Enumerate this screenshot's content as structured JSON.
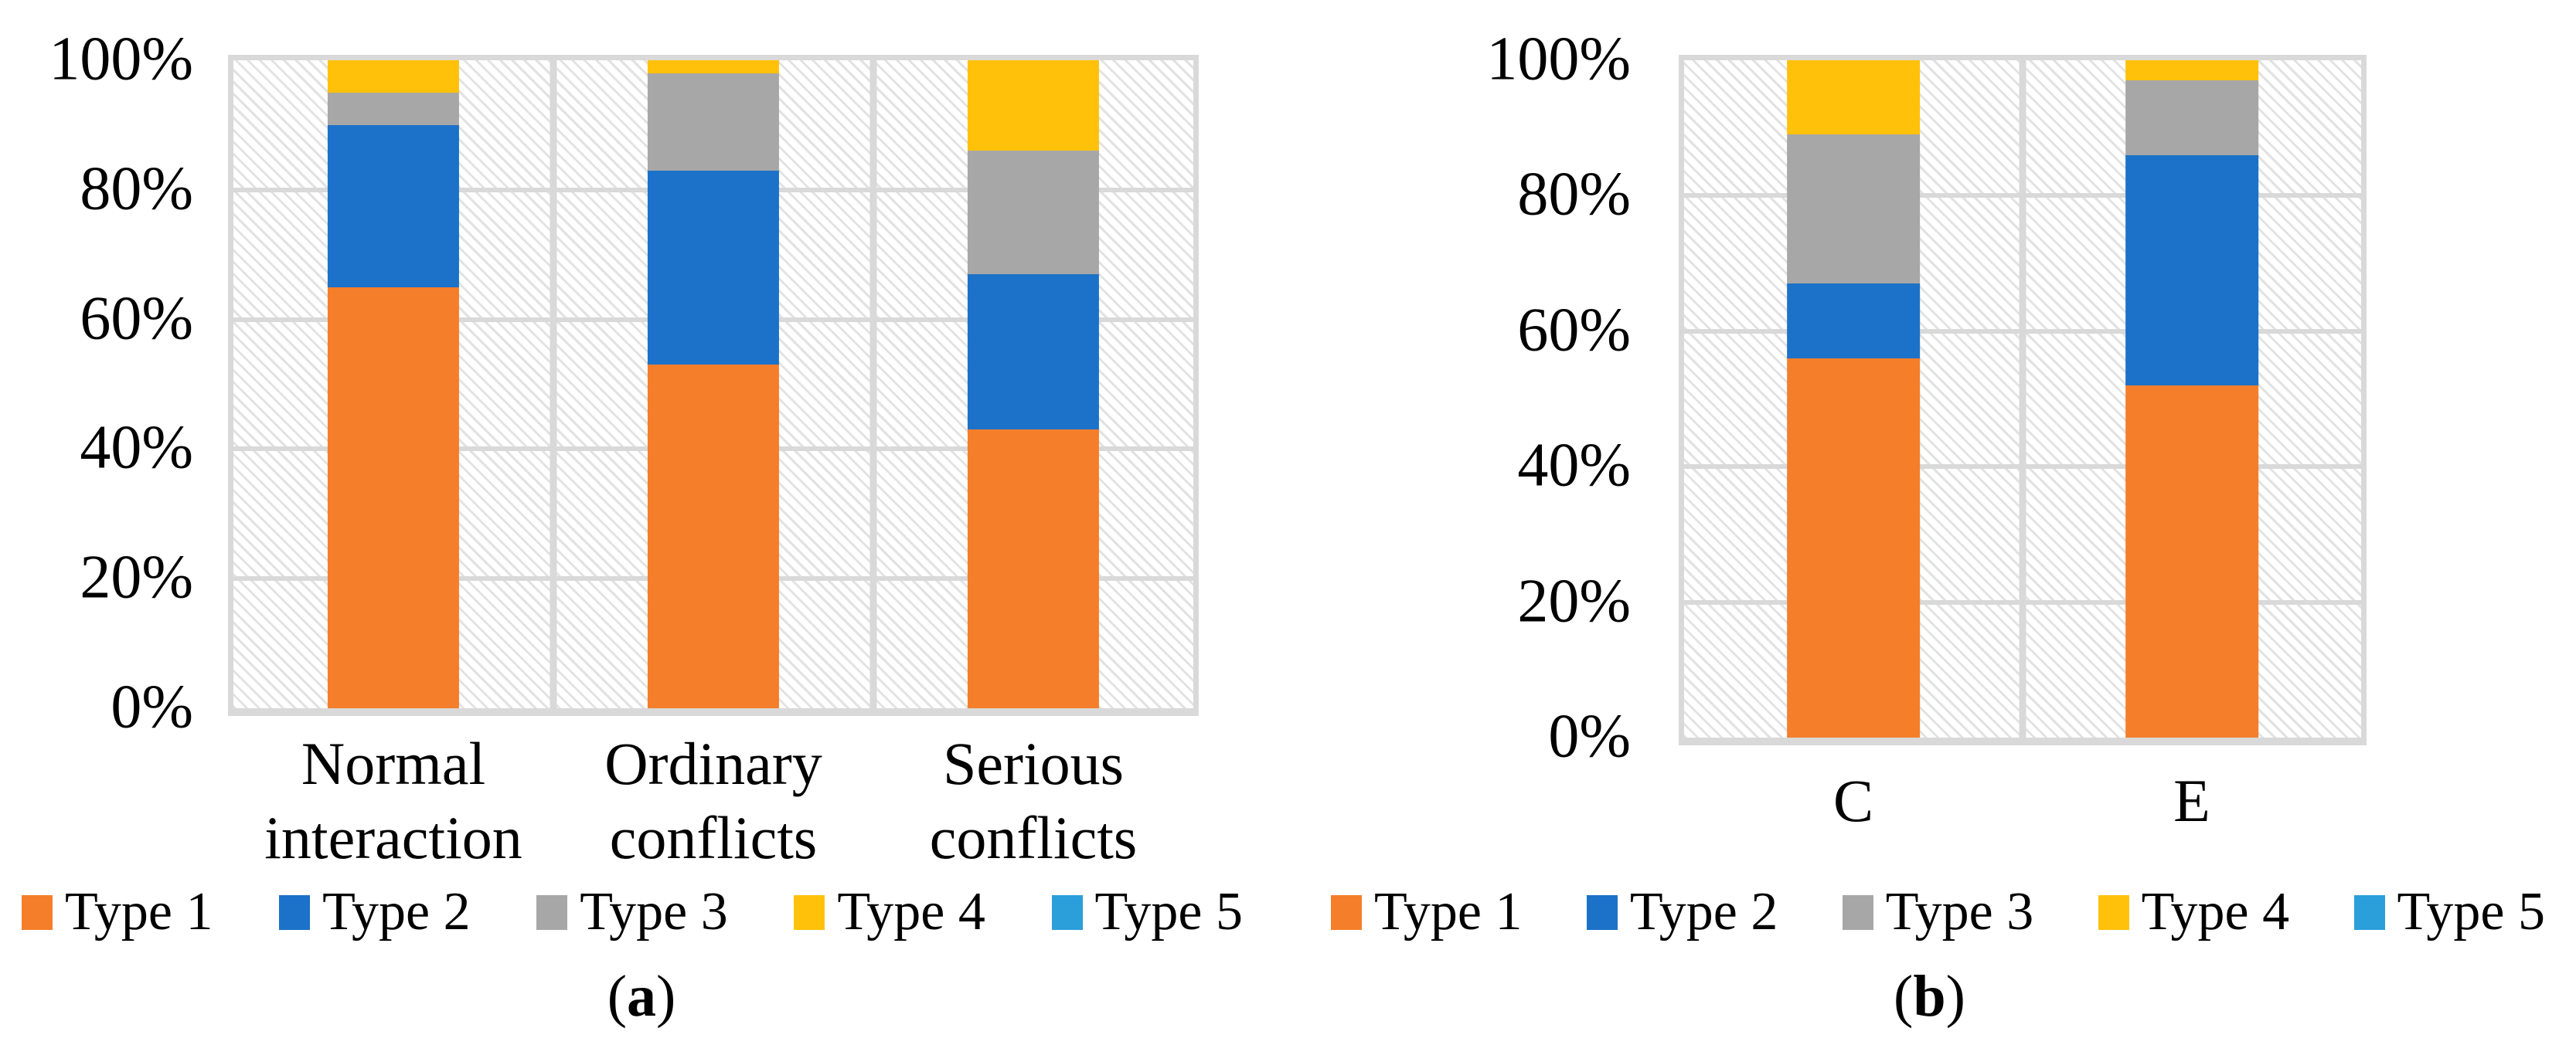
{
  "chart_data": [
    {
      "type": "bar",
      "stacked": true,
      "orientation": "vertical",
      "caption_open": "(",
      "caption_letter": "a",
      "caption_close": ")",
      "categories": [
        "Normal interaction",
        "Ordinary conflicts",
        "Serious conflicts"
      ],
      "series": [
        {
          "name": "Type 1",
          "color": "#F57E2B",
          "values": [
            65,
            53,
            43
          ]
        },
        {
          "name": "Type 2",
          "color": "#1B72C8",
          "values": [
            25,
            30,
            24
          ]
        },
        {
          "name": "Type 3",
          "color": "#A7A7A7",
          "values": [
            5,
            15,
            19
          ]
        },
        {
          "name": "Type 4",
          "color": "#FFC10A",
          "values": [
            5,
            2,
            14
          ]
        },
        {
          "name": "Type 5",
          "color": "#2B9FD9",
          "values": [
            0,
            0,
            0
          ]
        }
      ],
      "y_ticks_top_to_bottom": [
        "100%",
        "80%",
        "60%",
        "40%",
        "20%",
        "0%"
      ],
      "ylim": [
        0,
        100
      ],
      "unit": "percent",
      "grid": true,
      "plot_background": "diagonal-hatch",
      "legend_position": "bottom"
    },
    {
      "type": "bar",
      "stacked": true,
      "orientation": "vertical",
      "caption_open": "(",
      "caption_letter": "b",
      "caption_close": ")",
      "categories": [
        "C",
        "E"
      ],
      "series": [
        {
          "name": "Type 1",
          "color": "#F57E2B",
          "values": [
            56,
            52
          ]
        },
        {
          "name": "Type 2",
          "color": "#1B72C8",
          "values": [
            11,
            34
          ]
        },
        {
          "name": "Type 3",
          "color": "#A7A7A7",
          "values": [
            22,
            11
          ]
        },
        {
          "name": "Type 4",
          "color": "#FFC10A",
          "values": [
            11,
            3
          ]
        },
        {
          "name": "Type 5",
          "color": "#2B9FD9",
          "values": [
            0,
            0
          ]
        }
      ],
      "y_ticks_top_to_bottom": [
        "100%",
        "80%",
        "60%",
        "40%",
        "20%",
        "0%"
      ],
      "ylim": [
        0,
        100
      ],
      "unit": "percent",
      "grid": true,
      "plot_background": "diagonal-hatch",
      "legend_position": "bottom"
    }
  ],
  "styles": {
    "gridline_color": "#d9d9d9",
    "hatch_color": "#e2e2e2"
  }
}
